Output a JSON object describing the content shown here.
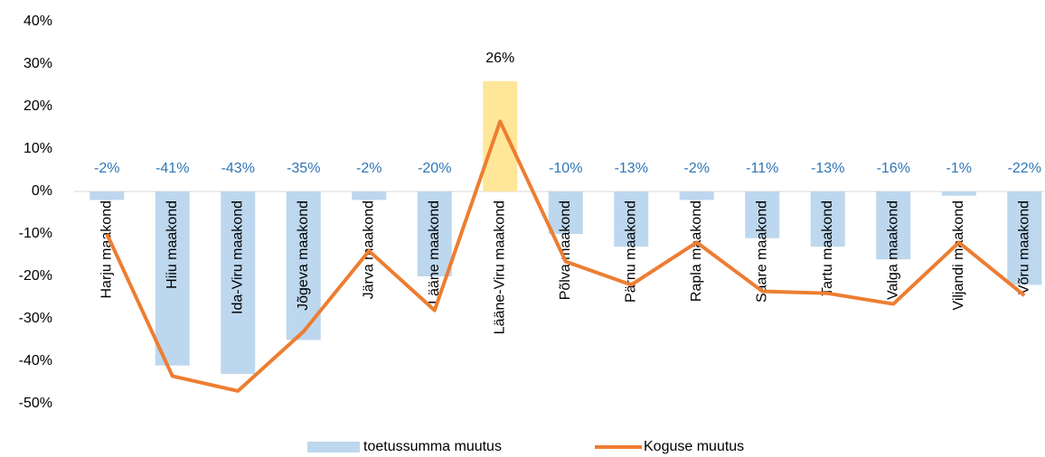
{
  "chart_data": {
    "type": "bar_line",
    "categories": [
      "Harju maakond",
      "Hiiu maakond",
      "Ida-Viru maakond",
      "Jõgeva maakond",
      "Järva maakond",
      "Lääne maakond",
      "Lääne-Viru maakond",
      "Põlva maakond",
      "Pärnu maakond",
      "Rapla maakond",
      "Saare maakond",
      "Tartu maakond",
      "Valga maakond",
      "Viljandi maakond",
      "Võru maakond"
    ],
    "series": [
      {
        "name": "toetussumma muutus",
        "type": "bar",
        "color": "#bdd7ee",
        "colors": [
          "#bdd7ee",
          "#bdd7ee",
          "#bdd7ee",
          "#bdd7ee",
          "#bdd7ee",
          "#bdd7ee",
          "#ffe699",
          "#bdd7ee",
          "#bdd7ee",
          "#bdd7ee",
          "#bdd7ee",
          "#bdd7ee",
          "#bdd7ee",
          "#bdd7ee",
          "#bdd7ee"
        ],
        "values": [
          -2,
          -41,
          -43,
          -35,
          -2,
          -20,
          26,
          -10,
          -13,
          -2,
          -11,
          -13,
          -16,
          -1,
          -22
        ],
        "value_labels": [
          "-2%",
          "-41%",
          "-43%",
          "-35%",
          "-2%",
          "-20%",
          "26%",
          "-10%",
          "-13%",
          "-2%",
          "-11%",
          "-13%",
          "-16%",
          "-1%",
          "-22%"
        ],
        "value_label_colors": [
          "#2e75b6",
          "#2e75b6",
          "#2e75b6",
          "#2e75b6",
          "#2e75b6",
          "#2e75b6",
          "#000000",
          "#2e75b6",
          "#2e75b6",
          "#2e75b6",
          "#2e75b6",
          "#2e75b6",
          "#2e75b6",
          "#2e75b6",
          "#2e75b6"
        ]
      },
      {
        "name": "Koguse muutus",
        "type": "line",
        "color": "#ed7d31",
        "values": [
          -10,
          -43.5,
          -47,
          -33,
          -14,
          -28,
          16.5,
          -16.5,
          -22,
          -12,
          -23.5,
          -24,
          -26.5,
          -12,
          -24.5
        ]
      }
    ],
    "ylim": [
      -50,
      40
    ],
    "yticks": [
      {
        "value": -50,
        "label": "-50%"
      },
      {
        "value": -40,
        "label": "-40%"
      },
      {
        "value": -30,
        "label": "-30%"
      },
      {
        "value": -20,
        "label": "-20%"
      },
      {
        "value": -10,
        "label": "-10%"
      },
      {
        "value": 0,
        "label": "0%"
      },
      {
        "value": 10,
        "label": "10%"
      },
      {
        "value": 20,
        "label": "20%"
      },
      {
        "value": 30,
        "label": "30%"
      },
      {
        "value": 40,
        "label": "40%"
      }
    ],
    "grid": false,
    "legend": "bottom"
  }
}
